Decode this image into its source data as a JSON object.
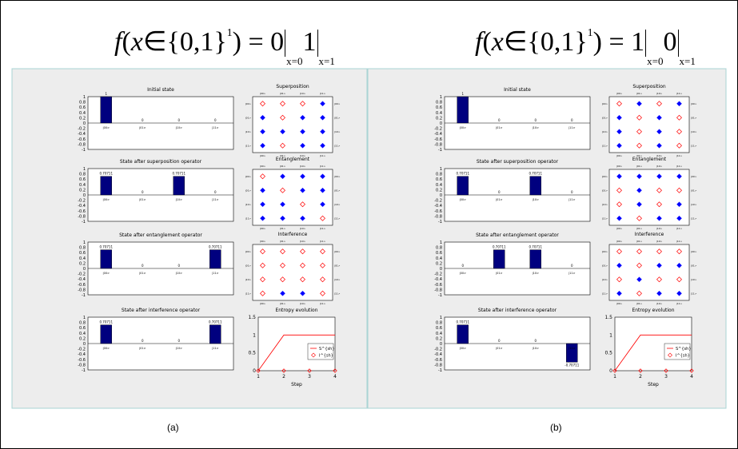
{
  "equations": [
    {
      "f": "f",
      "x": "x",
      "set": "{0,1}",
      "exp": "1",
      "lhs_eq": "= 0",
      "mid_sub": "x=0",
      "val2": "1",
      "end_sub": "x=1"
    },
    {
      "f": "f",
      "x": "x",
      "set": "{0,1}",
      "exp": "1",
      "lhs_eq": "= 1",
      "mid_sub": "x=0",
      "val2": "0",
      "end_sub": "x=1"
    }
  ],
  "captions": [
    "(a)",
    "(b)"
  ],
  "bar_titles": [
    "Initial state",
    "State after superposition operator",
    "State after entanglement operator",
    "State after interference operator"
  ],
  "grid_titles": [
    "Superposition",
    "Entanglement",
    "Interference"
  ],
  "entropy_title": "Entropy evolution",
  "entropy_xlabel": "Step",
  "entropy_legend": [
    "S^{sh}",
    "I^{sh}"
  ],
  "basis_labels": [
    "|00>",
    "|01>",
    "|10>",
    "|11>"
  ],
  "y_ticks": [
    "1",
    "0.8",
    "0.6",
    "0.4",
    "0.2",
    "0",
    "-0.2",
    "-0.4",
    "-0.6",
    "-0.8",
    "-1"
  ],
  "colors": {
    "bar": "#00007f",
    "filled": "#0000ff",
    "hollow": "#ff0000",
    "panel": "#ededed",
    "border": "#a9d4d4"
  },
  "chart_data": [
    {
      "panel": "a",
      "bars": [
        {
          "title": "Initial state",
          "type": "bar",
          "categories": [
            "|00>",
            "|01>",
            "|10>",
            "|11>"
          ],
          "values": [
            1,
            0,
            0,
            0
          ],
          "labels": [
            "1",
            "0",
            "0",
            "0"
          ],
          "ylim": [
            -1,
            1
          ]
        },
        {
          "title": "State after superposition operator",
          "type": "bar",
          "categories": [
            "|00>",
            "|01>",
            "|10>",
            "|11>"
          ],
          "values": [
            0.7071,
            0,
            0.7071,
            0
          ],
          "labels": [
            "0.70711",
            "0",
            "0.70711",
            "0"
          ],
          "ylim": [
            -1,
            1
          ]
        },
        {
          "title": "State after entanglement operator",
          "type": "bar",
          "categories": [
            "|00>",
            "|01>",
            "|10>",
            "|11>"
          ],
          "values": [
            0.7071,
            0,
            0,
            0.7071
          ],
          "labels": [
            "0.70711",
            "0",
            "0",
            "0.70711"
          ],
          "ylim": [
            -1,
            1
          ]
        },
        {
          "title": "State after interference operator",
          "type": "bar",
          "categories": [
            "|00>",
            "|01>",
            "|10>",
            "|11>"
          ],
          "values": [
            0.7071,
            0,
            0,
            0.7071
          ],
          "labels": [
            "0.70711",
            "0",
            "0",
            "0.70711"
          ],
          "ylim": [
            -1,
            1
          ]
        }
      ],
      "grids": [
        {
          "title": "Superposition",
          "type": "heatmap",
          "cells": [
            [
              0,
              0,
              0,
              1
            ],
            [
              1,
              0,
              1,
              1
            ],
            [
              1,
              1,
              1,
              1
            ],
            [
              1,
              0,
              1,
              1
            ]
          ]
        },
        {
          "title": "Entanglement",
          "type": "heatmap",
          "cells": [
            [
              0,
              1,
              1,
              1
            ],
            [
              1,
              0,
              1,
              1
            ],
            [
              1,
              1,
              0,
              1
            ],
            [
              1,
              1,
              1,
              0
            ]
          ]
        },
        {
          "title": "Interference",
          "type": "heatmap",
          "cells": [
            [
              0,
              0,
              0,
              0
            ],
            [
              0,
              0,
              0,
              0
            ],
            [
              0,
              0,
              0,
              0
            ],
            [
              0,
              1,
              1,
              0
            ]
          ]
        }
      ],
      "entropy": {
        "type": "line",
        "x": [
          1,
          2,
          3,
          4
        ],
        "series": [
          {
            "name": "S^{sh}",
            "values": [
              0,
              1,
              1,
              1
            ]
          },
          {
            "name": "I^{sh}",
            "values": [
              0,
              0,
              0,
              0
            ]
          }
        ],
        "ylim": [
          0,
          1.5
        ],
        "xlim": [
          1,
          4
        ],
        "xlabel": "Step"
      }
    },
    {
      "panel": "b",
      "bars": [
        {
          "title": "Initial state",
          "type": "bar",
          "categories": [
            "|00>",
            "|01>",
            "|10>",
            "|11>"
          ],
          "values": [
            1,
            0,
            0,
            0
          ],
          "labels": [
            "1",
            "0",
            "0",
            "0"
          ],
          "ylim": [
            -1,
            1
          ]
        },
        {
          "title": "State after superposition operator",
          "type": "bar",
          "categories": [
            "|00>",
            "|01>",
            "|10>",
            "|11>"
          ],
          "values": [
            0.7071,
            0,
            0.7071,
            0
          ],
          "labels": [
            "0.70711",
            "0",
            "0.70711",
            "0"
          ],
          "ylim": [
            -1,
            1
          ]
        },
        {
          "title": "State after entanglement operator",
          "type": "bar",
          "categories": [
            "|00>",
            "|01>",
            "|10>",
            "|11>"
          ],
          "values": [
            0,
            0.7071,
            0.7071,
            0
          ],
          "labels": [
            "0",
            "0.70711",
            "0.70711",
            "0"
          ],
          "ylim": [
            -1,
            1
          ]
        },
        {
          "title": "State after interference operator",
          "type": "bar",
          "categories": [
            "|00>",
            "|01>",
            "|10>",
            "|11>"
          ],
          "values": [
            0.7071,
            0,
            0,
            -0.7071
          ],
          "labels": [
            "0.70711",
            "0",
            "0",
            "-0.70711"
          ],
          "ylim": [
            -1,
            1
          ]
        }
      ],
      "grids": [
        {
          "title": "Superposition",
          "type": "heatmap",
          "cells": [
            [
              0,
              1,
              0,
              1
            ],
            [
              1,
              0,
              1,
              0
            ],
            [
              1,
              0,
              1,
              0
            ],
            [
              1,
              0,
              1,
              0
            ]
          ]
        },
        {
          "title": "Entanglement",
          "type": "heatmap",
          "cells": [
            [
              1,
              1,
              1,
              1
            ],
            [
              0,
              1,
              0,
              0
            ],
            [
              0,
              1,
              0,
              1
            ],
            [
              1,
              0,
              1,
              1
            ]
          ]
        },
        {
          "title": "Interference",
          "type": "heatmap",
          "cells": [
            [
              0,
              0,
              0,
              0
            ],
            [
              1,
              0,
              1,
              1
            ],
            [
              0,
              1,
              0,
              0
            ],
            [
              1,
              0,
              1,
              1
            ]
          ]
        }
      ],
      "entropy": {
        "type": "line",
        "x": [
          1,
          2,
          3,
          4
        ],
        "series": [
          {
            "name": "S^{sh}",
            "values": [
              0,
              1,
              1,
              1
            ]
          },
          {
            "name": "I^{sh}",
            "values": [
              0,
              0,
              0,
              0
            ]
          }
        ],
        "ylim": [
          0,
          1.5
        ],
        "xlim": [
          1,
          4
        ],
        "xlabel": "Step"
      }
    }
  ]
}
